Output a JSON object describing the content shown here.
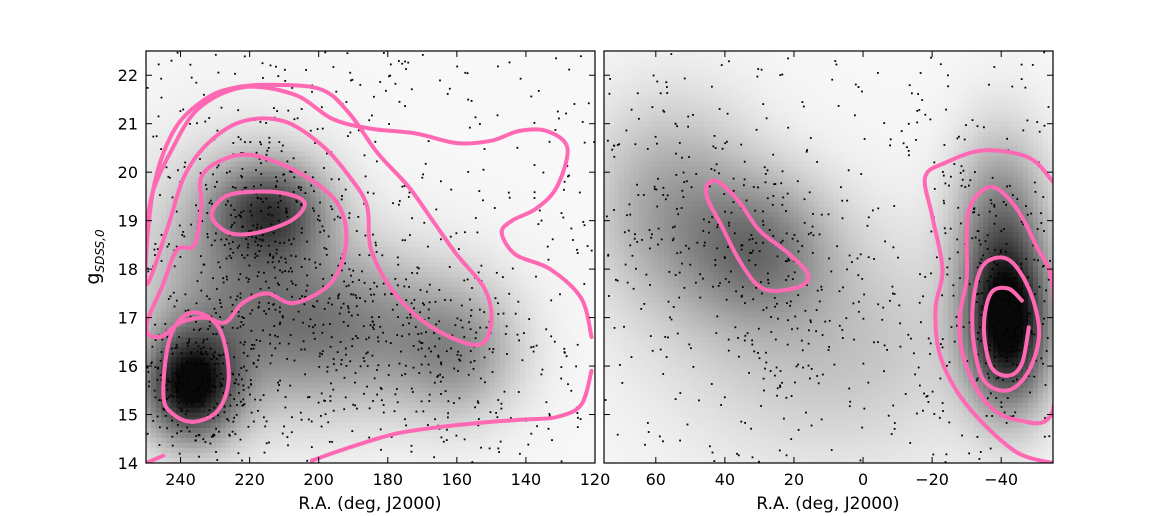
{
  "chart_data": {
    "type": "scatter",
    "contour_color": "#ff69b4",
    "point_color": "#000000",
    "density_colormap": "gray_r",
    "y_label_base": "g",
    "y_label_sub": "SDSS,0",
    "panels": [
      {
        "xlabel": "R.A. (deg, J2000)",
        "xlim": [
          250,
          120
        ],
        "ylim": [
          14,
          22.5
        ],
        "xticks": [
          240,
          220,
          200,
          180,
          160,
          140,
          120
        ],
        "xtick_labels": [
          "240",
          "220",
          "200",
          "180",
          "160",
          "140",
          "120"
        ],
        "yticks": [
          14,
          15,
          16,
          17,
          18,
          19,
          20,
          21,
          22
        ],
        "ytick_labels": [
          "14",
          "15",
          "16",
          "17",
          "18",
          "19",
          "20",
          "21",
          "22"
        ],
        "density_peaks": [
          {
            "x": 237,
            "y": 15.6,
            "sx": 9,
            "sy": 0.75,
            "amp": 1.0
          },
          {
            "x": 214,
            "y": 19.2,
            "sx": 11,
            "sy": 0.7,
            "amp": 0.62
          },
          {
            "x": 195,
            "y": 16.8,
            "sx": 22,
            "sy": 1.1,
            "amp": 0.42
          },
          {
            "x": 160,
            "y": 16.3,
            "sx": 12,
            "sy": 0.9,
            "amp": 0.32
          },
          {
            "x": 225,
            "y": 17.8,
            "sx": 18,
            "sy": 1.6,
            "amp": 0.3
          }
        ],
        "contours": [
          [
            [
              250,
              17.7
            ],
            [
              244,
              18.8
            ],
            [
              239,
              19.9
            ],
            [
              232,
              20.6
            ],
            [
              222,
              21.05
            ],
            [
              210,
              21.05
            ],
            [
              199,
              20.55
            ],
            [
              191,
              19.9
            ],
            [
              186,
              19.3
            ],
            [
              185,
              18.45
            ],
            [
              180,
              17.7
            ],
            [
              172,
              17.05
            ],
            [
              162,
              16.6
            ],
            [
              153,
              16.45
            ],
            [
              150,
              16.95
            ],
            [
              152,
              17.6
            ],
            [
              160,
              18.3
            ],
            [
              167,
              19.0
            ],
            [
              174,
              19.7
            ],
            [
              183,
              20.4
            ],
            [
              191,
              21.2
            ],
            [
              199,
              21.7
            ],
            [
              212,
              21.8
            ],
            [
              224,
              21.75
            ],
            [
              233,
              21.5
            ],
            [
              242,
              20.85
            ],
            [
              248,
              19.6
            ]
          ],
          [
            [
              250,
              16.8
            ],
            [
              245,
              17.7
            ],
            [
              241,
              18.4
            ],
            [
              236,
              18.5
            ],
            [
              234,
              19.3
            ],
            [
              234,
              19.9
            ],
            [
              228,
              20.25
            ],
            [
              219,
              20.35
            ],
            [
              206,
              20.0
            ],
            [
              195,
              19.4
            ],
            [
              192,
              18.6
            ],
            [
              196,
              17.75
            ],
            [
              207,
              17.3
            ],
            [
              215,
              17.5
            ],
            [
              222,
              17.3
            ],
            [
              227,
              16.9
            ],
            [
              233,
              17.0
            ],
            [
              240,
              16.9
            ],
            [
              246,
              16.6
            ]
          ],
          [
            [
              245,
              15.4
            ],
            [
              243,
              16.6
            ],
            [
              237,
              17.1
            ],
            [
              229,
              16.8
            ],
            [
              226,
              15.8
            ],
            [
              229,
              15.1
            ],
            [
              236,
              14.85
            ],
            [
              242,
              15.0
            ]
          ],
          [
            [
              231,
              19.1
            ],
            [
              226,
              18.75
            ],
            [
              218,
              18.75
            ],
            [
              208,
              19.0
            ],
            [
              204,
              19.35
            ],
            [
              209,
              19.55
            ],
            [
              218,
              19.6
            ],
            [
              227,
              19.5
            ]
          ]
        ],
        "open_contours": [
          [
            [
              250,
              18.8
            ],
            [
              248,
              19.6
            ],
            [
              243,
              20.4
            ],
            [
              235,
              21.3
            ],
            [
              222,
              21.75
            ],
            [
              207,
              21.6
            ],
            [
              196,
              21.1
            ],
            [
              185,
              20.9
            ],
            [
              172,
              20.8
            ],
            [
              160,
              20.6
            ],
            [
              150,
              20.65
            ],
            [
              142,
              20.85
            ],
            [
              134,
              20.85
            ],
            [
              128,
              20.5
            ],
            [
              131,
              19.7
            ],
            [
              137,
              19.25
            ],
            [
              144,
              19.0
            ],
            [
              147,
              18.75
            ],
            [
              143,
              18.3
            ],
            [
              133,
              18.0
            ],
            [
              124,
              17.4
            ],
            [
              121,
              16.6
            ]
          ],
          [
            [
              121,
              15.9
            ],
            [
              124,
              15.2
            ],
            [
              131,
              14.95
            ],
            [
              140,
              14.9
            ],
            [
              150,
              14.85
            ],
            [
              164,
              14.75
            ],
            [
              178,
              14.6
            ],
            [
              192,
              14.3
            ],
            [
              202,
              14.05
            ]
          ],
          [
            [
              250,
              14.0
            ],
            [
              245,
              14.15
            ]
          ]
        ],
        "stars_n": 1400
      },
      {
        "xlabel": "R.A. (deg, J2000)",
        "xlim": [
          75,
          -55
        ],
        "ylim": [
          14,
          22.5
        ],
        "xticks": [
          60,
          40,
          20,
          0,
          -20,
          -40
        ],
        "xtick_labels": [
          "60",
          "40",
          "20",
          "0",
          "−20",
          "−40"
        ],
        "yticks": [
          14,
          15,
          16,
          17,
          18,
          19,
          20,
          21,
          22
        ],
        "ytick_labels": [
          "",
          "",
          "",
          "",
          "",
          "",
          "",
          "",
          ""
        ],
        "density_peaks": [
          {
            "x": -42,
            "y": 16.8,
            "sx": 8,
            "sy": 1.1,
            "amp": 1.0
          },
          {
            "x": -40,
            "y": 18.8,
            "sx": 9,
            "sy": 1.3,
            "amp": 0.45
          },
          {
            "x": 30,
            "y": 18.4,
            "sx": 14,
            "sy": 1.0,
            "amp": 0.42
          },
          {
            "x": 55,
            "y": 19.3,
            "sx": 16,
            "sy": 1.4,
            "amp": 0.3
          },
          {
            "x": 10,
            "y": 16.5,
            "sx": 30,
            "sy": 1.6,
            "amp": 0.18
          }
        ],
        "contours": [
          [
            [
              -55,
              14.0
            ],
            [
              -45,
              14.2
            ],
            [
              -35,
              14.8
            ],
            [
              -27,
              15.5
            ],
            [
              -22,
              16.3
            ],
            [
              -21,
              17.2
            ],
            [
              -23,
              18.0
            ],
            [
              -20,
              19.1
            ],
            [
              -18,
              19.9
            ],
            [
              -24,
              20.2
            ],
            [
              -35,
              20.45
            ],
            [
              -48,
              20.3
            ],
            [
              -55,
              19.8
            ]
          ],
          [
            [
              -55,
              15.1
            ],
            [
              -44,
              14.9
            ],
            [
              -35,
              15.3
            ],
            [
              -29,
              16.2
            ],
            [
              -28,
              17.0
            ],
            [
              -30,
              17.8
            ],
            [
              -30,
              18.6
            ],
            [
              -31,
              19.3
            ],
            [
              -37,
              19.7
            ],
            [
              -44,
              19.3
            ],
            [
              -50,
              18.5
            ],
            [
              -55,
              17.6
            ]
          ],
          [
            [
              -51,
              16.7
            ],
            [
              -48,
              15.9
            ],
            [
              -42,
              15.5
            ],
            [
              -35,
              15.7
            ],
            [
              -32,
              16.5
            ],
            [
              -32,
              17.4
            ],
            [
              -35,
              18.1
            ],
            [
              -42,
              18.2
            ],
            [
              -48,
              17.6
            ]
          ],
          [
            [
              -48,
              16.8
            ],
            [
              -46,
              16.05
            ],
            [
              -42,
              15.8
            ],
            [
              -37,
              16.0
            ],
            [
              -35,
              16.8
            ],
            [
              -37,
              17.5
            ],
            [
              -42,
              17.6
            ],
            [
              -46,
              17.35
            ]
          ],
          [
            [
              42,
              19.8
            ],
            [
              36,
              19.4
            ],
            [
              30,
              18.8
            ],
            [
              22,
              18.35
            ],
            [
              16,
              17.9
            ],
            [
              18,
              17.65
            ],
            [
              26,
              17.55
            ],
            [
              31,
              17.7
            ],
            [
              36,
              18.2
            ],
            [
              41,
              18.9
            ],
            [
              45,
              19.45
            ],
            [
              45,
              19.75
            ]
          ]
        ]
      }
    ]
  }
}
